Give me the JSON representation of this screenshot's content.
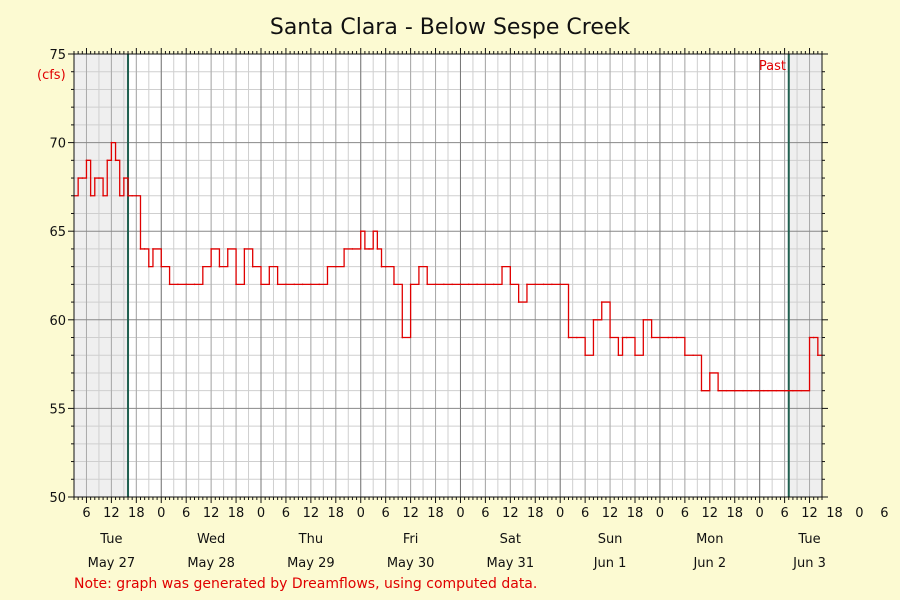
{
  "chart_data": {
    "type": "line",
    "title": "Santa Clara - Below Sespe Creek",
    "ylabel": "(cfs)",
    "ylim": [
      50,
      75
    ],
    "yticks": [
      50,
      55,
      60,
      65,
      70,
      75
    ],
    "x_hour_range": [
      3,
      183
    ],
    "grid": true,
    "hour_tick_labels": [
      "6",
      "12",
      "18",
      "0",
      "6",
      "12",
      "18",
      "0",
      "6",
      "12",
      "18",
      "0",
      "6",
      "12",
      "18",
      "0",
      "6",
      "12",
      "18",
      "0",
      "6",
      "12",
      "18",
      "0",
      "6",
      "12",
      "18",
      "0",
      "6",
      "12",
      "18",
      "0",
      "6",
      "12",
      "18"
    ],
    "days": [
      {
        "weekday": "Tue",
        "date": "May 27"
      },
      {
        "weekday": "Wed",
        "date": "May 28"
      },
      {
        "weekday": "Thu",
        "date": "May 29"
      },
      {
        "weekday": "Fri",
        "date": "May 30"
      },
      {
        "weekday": "Sat",
        "date": "May 31"
      },
      {
        "weekday": "Sun",
        "date": "Jun 1"
      },
      {
        "weekday": "Mon",
        "date": "Jun 2"
      },
      {
        "weekday": "Tue",
        "date": "Jun 3"
      }
    ],
    "past_label": "Past",
    "series": [
      {
        "color": "#e00000",
        "x": [
          3,
          4,
          5,
          6,
          7,
          8,
          9,
          10,
          11,
          12,
          13,
          14,
          15,
          16,
          17,
          18,
          19,
          20,
          21,
          22,
          24,
          26,
          28,
          30,
          32,
          34,
          36,
          38,
          40,
          42,
          44,
          46,
          48,
          50,
          52,
          54,
          56,
          58,
          60,
          62,
          64,
          66,
          68,
          70,
          72,
          73,
          74,
          75,
          76,
          77,
          78,
          80,
          82,
          84,
          86,
          88,
          90,
          92,
          94,
          96,
          98,
          100,
          102,
          104,
          106,
          108,
          110,
          112,
          114,
          116,
          118,
          120,
          122,
          124,
          126,
          128,
          130,
          132,
          134,
          135,
          136,
          138,
          140,
          142,
          144,
          146,
          148,
          150,
          152,
          154,
          156,
          158,
          160,
          162,
          164,
          166,
          168,
          169,
          170,
          172,
          174,
          176,
          178,
          180,
          181,
          182,
          183
        ],
        "values": [
          67,
          68,
          68,
          69,
          67,
          68,
          68,
          67,
          69,
          70,
          69,
          67,
          68,
          67,
          67,
          67,
          64,
          64,
          63,
          64,
          63,
          62,
          62,
          62,
          62,
          63,
          64,
          63,
          64,
          62,
          64,
          63,
          62,
          63,
          62,
          62,
          62,
          62,
          62,
          62,
          63,
          63,
          64,
          64,
          65,
          64,
          64,
          65,
          64,
          63,
          63,
          62,
          59,
          62,
          63,
          62,
          62,
          62,
          62,
          62,
          62,
          62,
          62,
          62,
          63,
          62,
          61,
          62,
          62,
          62,
          62,
          62,
          59,
          59,
          58,
          60,
          61,
          59,
          58,
          59,
          59,
          58,
          60,
          59,
          59,
          59,
          59,
          58,
          58,
          56,
          57,
          56,
          56,
          56,
          56,
          56,
          56,
          56,
          56,
          56,
          56,
          56,
          56,
          59,
          59,
          58,
          58
        ]
      }
    ]
  },
  "note": "Note: graph was generated by Dreamflows, using computed data."
}
